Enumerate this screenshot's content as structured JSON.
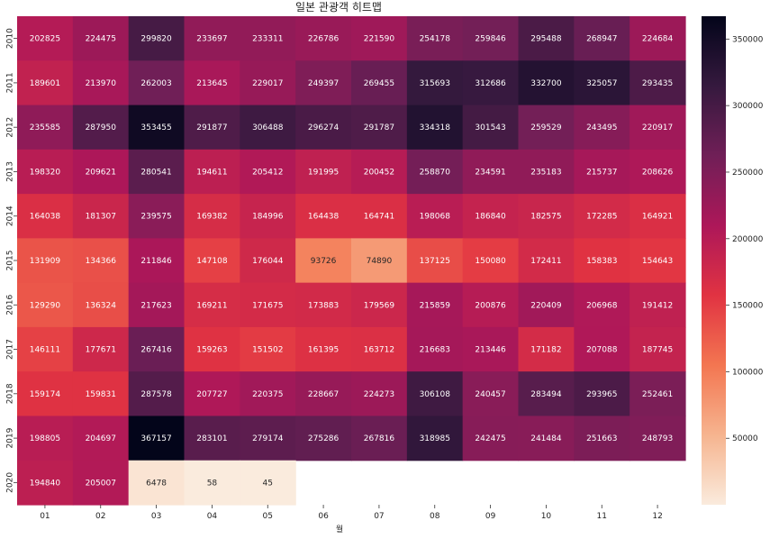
{
  "chart_data": {
    "type": "heatmap",
    "title": "일본 관광객 히트맵",
    "xlabel": "월",
    "ylabel": "",
    "x_categories": [
      "01",
      "02",
      "03",
      "04",
      "05",
      "06",
      "07",
      "08",
      "09",
      "10",
      "11",
      "12"
    ],
    "y_categories": [
      "2010",
      "2011",
      "2012",
      "2013",
      "2014",
      "2015",
      "2016",
      "2017",
      "2018",
      "2019",
      "2020"
    ],
    "values": [
      [
        202825,
        224475,
        299820,
        233697,
        233311,
        226786,
        221590,
        254178,
        259846,
        295488,
        268947,
        224684
      ],
      [
        189601,
        213970,
        262003,
        213645,
        229017,
        249397,
        269455,
        315693,
        312686,
        332700,
        325057,
        293435
      ],
      [
        235585,
        287950,
        353455,
        291877,
        306488,
        296274,
        291787,
        334318,
        301543,
        259529,
        243495,
        220917
      ],
      [
        198320,
        209621,
        280541,
        194611,
        205412,
        191995,
        200452,
        258870,
        234591,
        235183,
        215737,
        208626
      ],
      [
        164038,
        181307,
        239575,
        169382,
        184996,
        164438,
        164741,
        198068,
        186840,
        182575,
        172285,
        164921
      ],
      [
        131909,
        134366,
        211846,
        147108,
        176044,
        93726,
        74890,
        137125,
        150080,
        172411,
        158383,
        154643
      ],
      [
        129290,
        136324,
        217623,
        169211,
        171675,
        173883,
        179569,
        215859,
        200876,
        220409,
        206968,
        191412
      ],
      [
        146111,
        177671,
        267416,
        159263,
        151502,
        161395,
        163712,
        216683,
        213446,
        171182,
        207088,
        187745
      ],
      [
        159174,
        159831,
        287578,
        207727,
        220375,
        228667,
        224273,
        306108,
        240457,
        283494,
        293965,
        252461
      ],
      [
        198805,
        204697,
        367157,
        283101,
        279174,
        275286,
        267816,
        318985,
        242475,
        241484,
        251663,
        248793
      ],
      [
        194840,
        205007,
        6478,
        58,
        45,
        null,
        null,
        null,
        null,
        null,
        null,
        null
      ]
    ],
    "colorbar": {
      "ticks": [
        50000,
        100000,
        150000,
        200000,
        250000,
        300000,
        350000
      ],
      "tick_labels": [
        "50000",
        "100000",
        "150000",
        "200000",
        "250000",
        "300000",
        "350000"
      ],
      "vmin": 45,
      "vmax": 367157,
      "colormap": "rocket_r",
      "colors": [
        "#faebdd",
        "#f6b48f",
        "#f37651",
        "#e13342",
        "#ad1759",
        "#701f57",
        "#35193e",
        "#03051a"
      ]
    }
  }
}
